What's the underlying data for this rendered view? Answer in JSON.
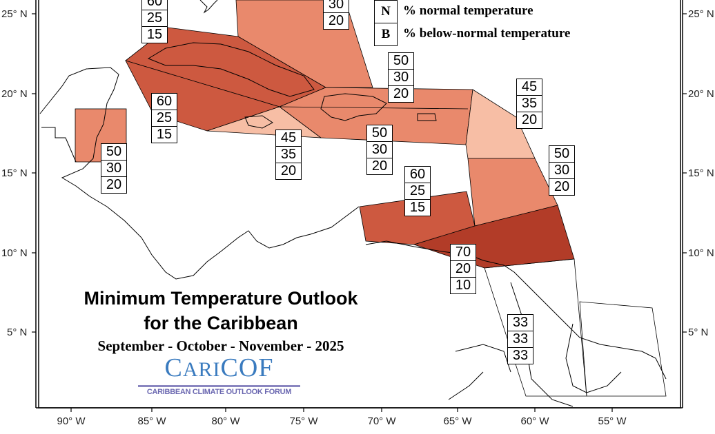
{
  "title": {
    "line1": "Minimum Temperature Outlook",
    "line2": "for the Caribbean",
    "period": "September - October - November - 2025"
  },
  "logo": {
    "text": "CariCOF",
    "main_big1": "C",
    "main_small": "ARI",
    "main_big2": "COF",
    "subtitle": "CARIBBEAN CLIMATE OUTLOOK FORUM"
  },
  "legend": {
    "items": [
      {
        "key": "N",
        "label": "% normal temperature"
      },
      {
        "key": "B",
        "label": "% below-normal temperature"
      }
    ]
  },
  "colors": {
    "prob_45": "#f7bea5",
    "prob_50": "#e9896c",
    "prob_60": "#cd5940",
    "prob_70": "#b23c28",
    "no_shading": "#ffffff"
  },
  "axes": {
    "lat_ticks": [
      "25° N",
      "20° N",
      "15° N",
      "10° N",
      "5° N"
    ],
    "lon_ticks": [
      "90° W",
      "85° W",
      "80° W",
      "75° W",
      "70° W",
      "65° W",
      "60° W",
      "55° W"
    ]
  },
  "regions": [
    {
      "name": "cuba",
      "values": [
        "60",
        "25",
        "15"
      ]
    },
    {
      "name": "bahamas",
      "values": [
        "30",
        "20"
      ]
    },
    {
      "name": "hispaniola-north",
      "values": [
        "50",
        "30",
        "20"
      ]
    },
    {
      "name": "leeward-islands",
      "values": [
        "45",
        "35",
        "20"
      ]
    },
    {
      "name": "cayman",
      "values": [
        "60",
        "25",
        "15"
      ]
    },
    {
      "name": "belize",
      "values": [
        "50",
        "30",
        "20"
      ]
    },
    {
      "name": "jamaica",
      "values": [
        "45",
        "35",
        "20"
      ]
    },
    {
      "name": "hispaniola-puerto-rico",
      "values": [
        "50",
        "30",
        "20"
      ]
    },
    {
      "name": "windward-islands",
      "values": [
        "50",
        "30",
        "20"
      ]
    },
    {
      "name": "abc-islands",
      "values": [
        "60",
        "25",
        "15"
      ]
    },
    {
      "name": "trinidad-tobago",
      "values": [
        "70",
        "20",
        "10"
      ]
    },
    {
      "name": "guianas",
      "values": [
        "33",
        "33",
        "33"
      ]
    }
  ]
}
